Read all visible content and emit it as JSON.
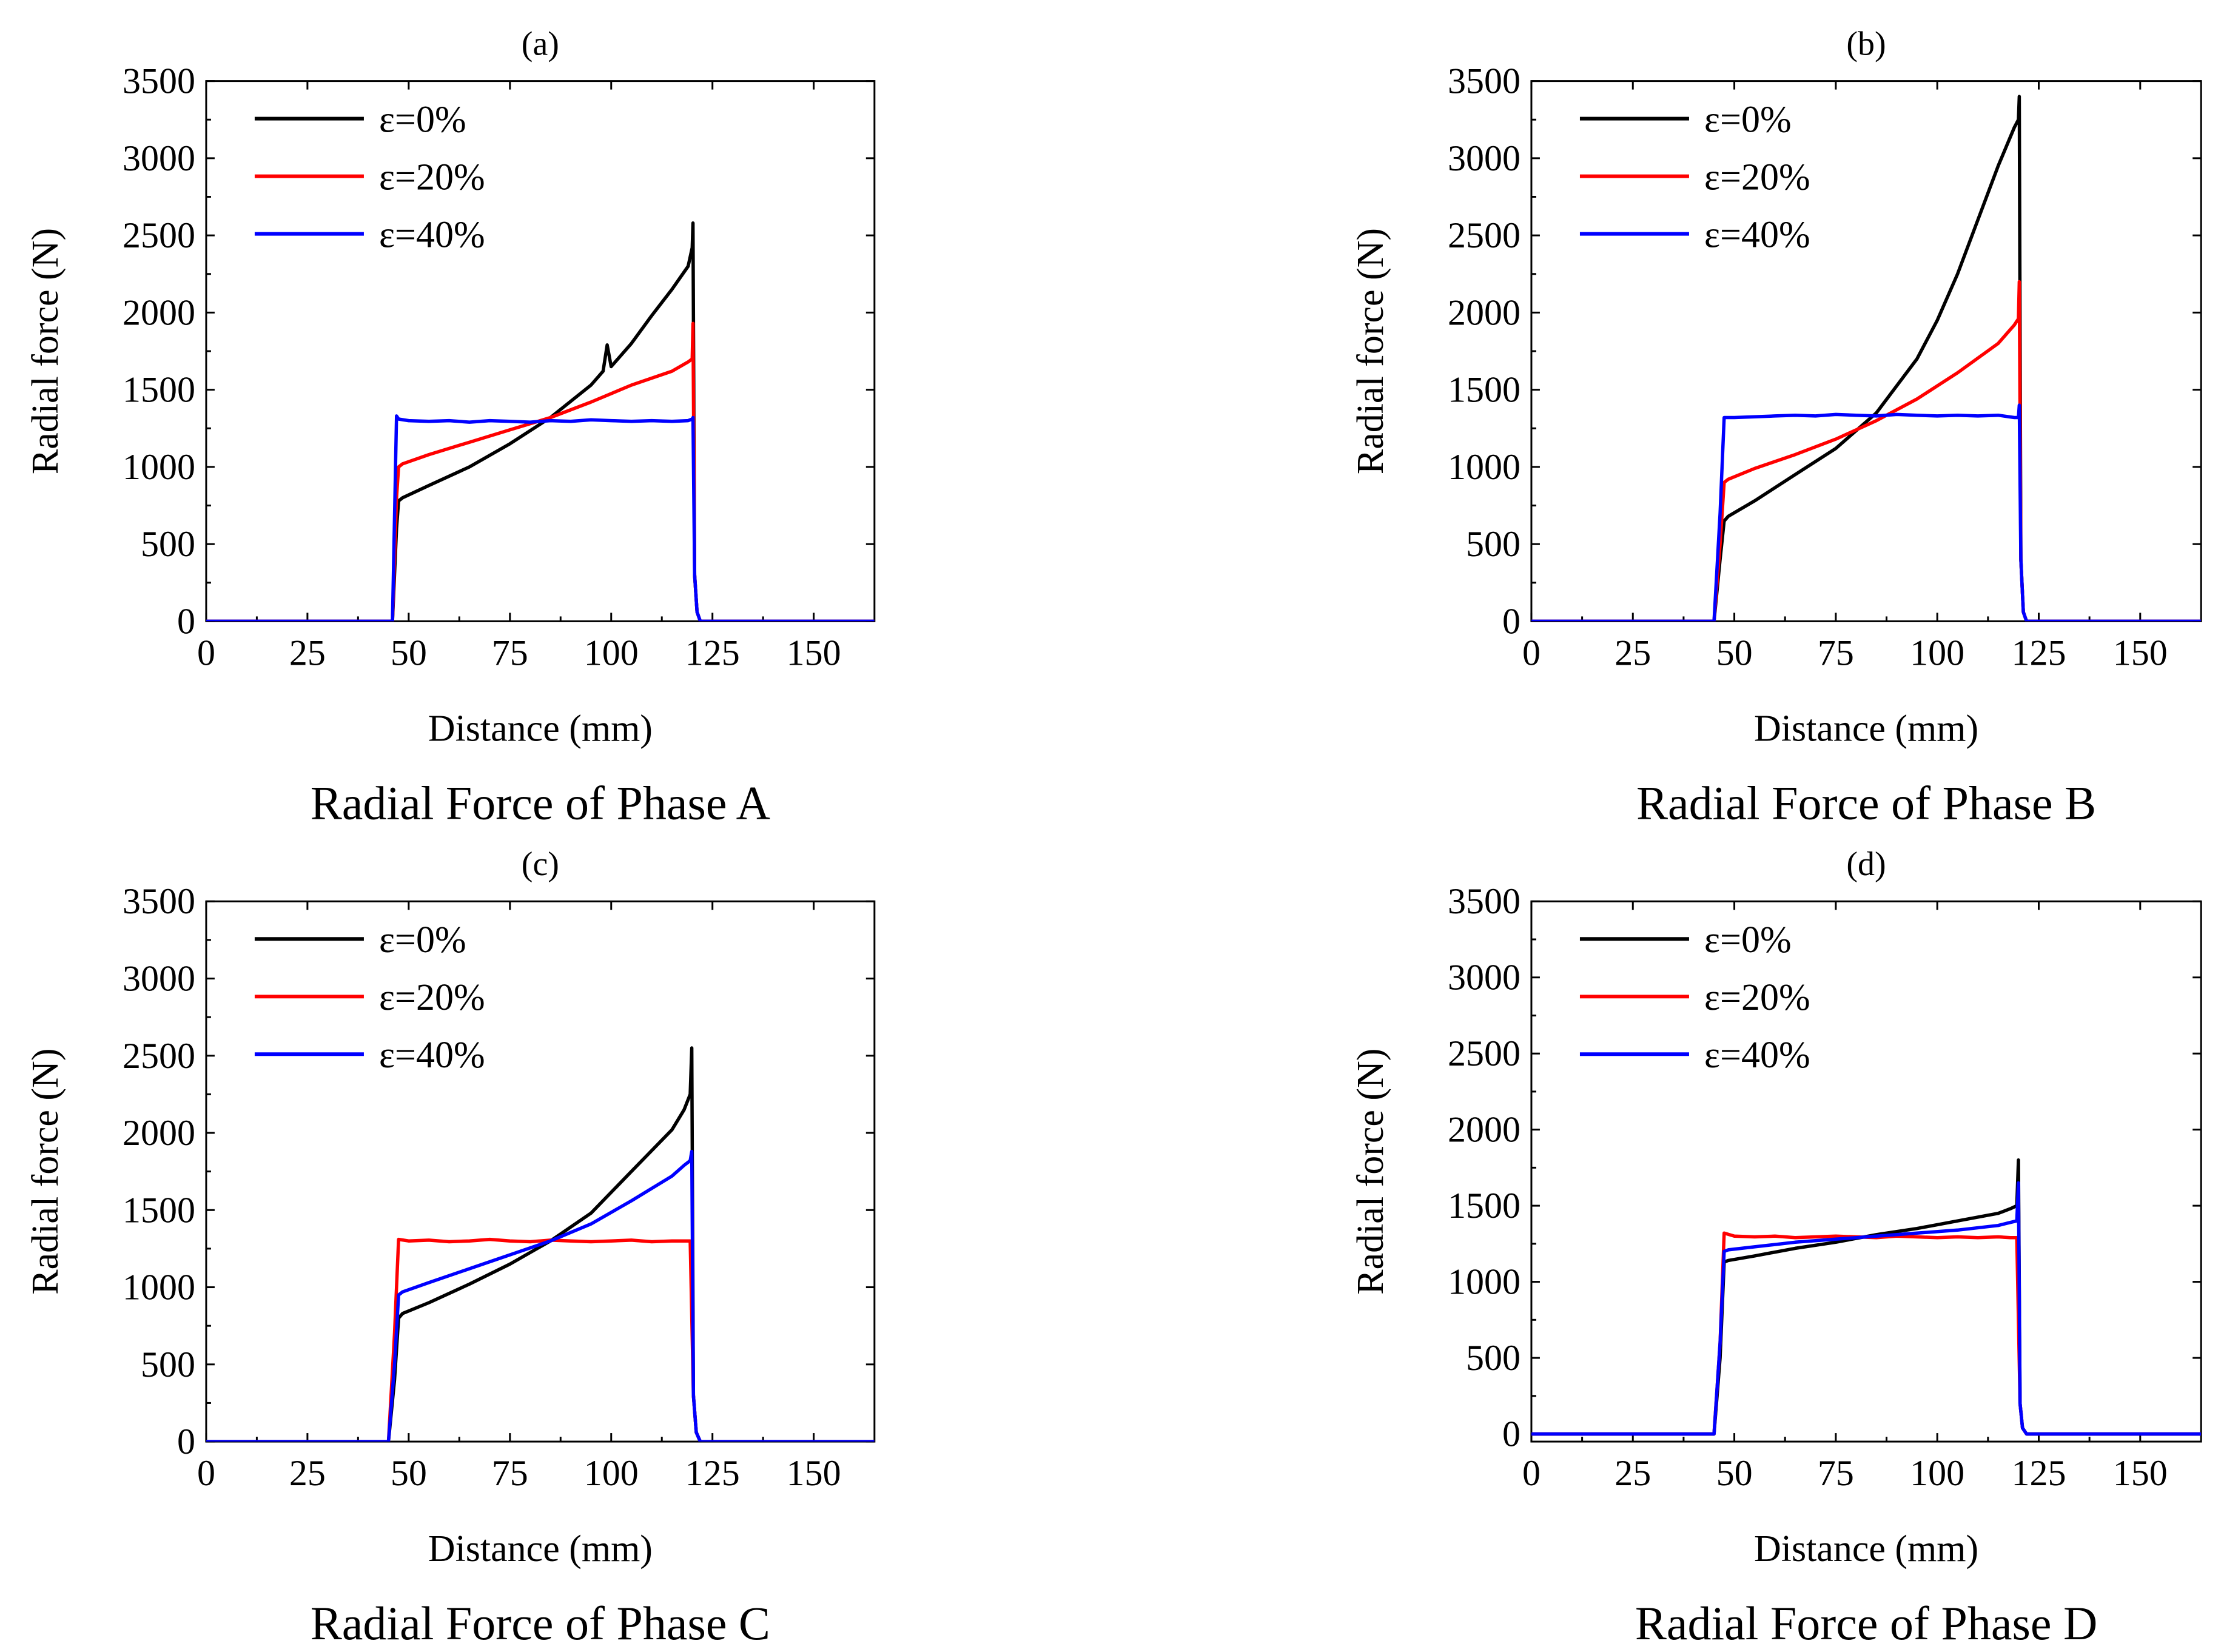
{
  "figure": {
    "x_axis_label": "Distance (mm)",
    "y_axis_label": "Radial  force (N)"
  },
  "chart_data": [
    {
      "type": "line",
      "panel_label": "(a)",
      "caption": "Radial Force of Phase A",
      "xlabel": "Distance (mm)",
      "ylabel": "Radial  force (N)",
      "xlim": [
        0,
        165
      ],
      "ylim": [
        0,
        3500
      ],
      "xticks": [
        0,
        25,
        50,
        75,
        100,
        125,
        150
      ],
      "yticks": [
        0,
        500,
        1000,
        1500,
        2000,
        2500,
        3000,
        3500
      ],
      "legend_position": "top-left",
      "series": [
        {
          "name": "ε=0%",
          "color": "#000000",
          "x": [
            0,
            46,
            47,
            47.5,
            48.5,
            55,
            65,
            75,
            85,
            95,
            98,
            99,
            100,
            105,
            110,
            115,
            119,
            120,
            120.2,
            120.6,
            121.2,
            122,
            165
          ],
          "y": [
            0,
            0,
            600,
            780,
            800,
            880,
            1000,
            1150,
            1320,
            1530,
            1620,
            1790,
            1650,
            1800,
            1980,
            2150,
            2300,
            2420,
            2580,
            300,
            60,
            0,
            0
          ]
        },
        {
          "name": "ε=20%",
          "color": "#ff0000",
          "x": [
            0,
            46,
            47,
            47.5,
            48.5,
            55,
            65,
            75,
            85,
            95,
            105,
            115,
            119,
            120,
            120.2,
            120.6,
            121.2,
            122,
            165
          ],
          "y": [
            0,
            0,
            800,
            1000,
            1020,
            1080,
            1160,
            1240,
            1320,
            1420,
            1530,
            1620,
            1680,
            1700,
            1930,
            300,
            60,
            0,
            0
          ]
        },
        {
          "name": "ε=40%",
          "color": "#0000ff",
          "x": [
            0,
            46,
            47,
            47.5,
            50,
            55,
            60,
            65,
            70,
            75,
            80,
            85,
            90,
            95,
            100,
            105,
            110,
            115,
            119,
            120,
            120.2,
            120.6,
            121.2,
            122,
            165
          ],
          "y": [
            0,
            0,
            1330,
            1310,
            1300,
            1295,
            1300,
            1290,
            1300,
            1295,
            1290,
            1300,
            1295,
            1305,
            1300,
            1295,
            1300,
            1295,
            1300,
            1310,
            1320,
            300,
            60,
            0,
            0
          ]
        }
      ]
    },
    {
      "type": "line",
      "panel_label": "(b)",
      "caption": "Radial Force of Phase B",
      "xlabel": "Distance (mm)",
      "ylabel": "Radial  force (N)",
      "xlim": [
        0,
        165
      ],
      "ylim": [
        0,
        3500
      ],
      "xticks": [
        0,
        25,
        50,
        75,
        100,
        125,
        150
      ],
      "yticks": [
        0,
        500,
        1000,
        1500,
        2000,
        2500,
        3000,
        3500
      ],
      "legend_position": "top-left",
      "series": [
        {
          "name": "ε=0%",
          "color": "#000000",
          "x": [
            0,
            45,
            46.5,
            47.5,
            48.5,
            55,
            65,
            75,
            85,
            95,
            100,
            105,
            110,
            115,
            119,
            120,
            120.2,
            120.6,
            121.2,
            122,
            165
          ],
          "y": [
            0,
            0,
            400,
            650,
            680,
            780,
            950,
            1120,
            1350,
            1700,
            1950,
            2250,
            2600,
            2950,
            3200,
            3250,
            3400,
            400,
            60,
            0,
            0
          ]
        },
        {
          "name": "ε=20%",
          "color": "#ff0000",
          "x": [
            0,
            45,
            46.5,
            47.5,
            48.5,
            55,
            65,
            75,
            85,
            95,
            105,
            115,
            119,
            120,
            120.2,
            120.6,
            121.2,
            122,
            165
          ],
          "y": [
            0,
            0,
            500,
            900,
            920,
            990,
            1080,
            1180,
            1300,
            1440,
            1610,
            1800,
            1920,
            1960,
            2200,
            400,
            60,
            0,
            0
          ]
        },
        {
          "name": "ε=40%",
          "color": "#0000ff",
          "x": [
            0,
            45,
            46.5,
            47.5,
            50,
            55,
            60,
            65,
            70,
            75,
            80,
            85,
            90,
            95,
            100,
            105,
            110,
            115,
            119,
            120,
            120.2,
            120.6,
            121.2,
            122,
            165
          ],
          "y": [
            0,
            0,
            700,
            1320,
            1320,
            1325,
            1330,
            1335,
            1330,
            1340,
            1335,
            1330,
            1340,
            1335,
            1330,
            1335,
            1330,
            1335,
            1320,
            1320,
            1400,
            400,
            60,
            0,
            0
          ]
        }
      ]
    },
    {
      "type": "line",
      "panel_label": "(c)",
      "caption": "Radial Force of Phase C",
      "xlabel": "Distance (mm)",
      "ylabel": "Radial  force (N)",
      "xlim": [
        0,
        165
      ],
      "ylim": [
        0,
        3500
      ],
      "xticks": [
        0,
        25,
        50,
        75,
        100,
        125,
        150
      ],
      "yticks": [
        0,
        500,
        1000,
        1500,
        2000,
        2500,
        3000,
        3500
      ],
      "legend_position": "top-left",
      "series": [
        {
          "name": "ε=0%",
          "color": "#000000",
          "x": [
            0,
            45,
            46.5,
            47.5,
            48.5,
            55,
            65,
            75,
            85,
            95,
            105,
            115,
            118,
            119.5,
            119.9,
            120.3,
            121,
            122,
            165
          ],
          "y": [
            0,
            0,
            400,
            800,
            830,
            900,
            1020,
            1150,
            1300,
            1480,
            1750,
            2020,
            2150,
            2250,
            2550,
            300,
            60,
            0,
            0
          ]
        },
        {
          "name": "ε=20%",
          "color": "#ff0000",
          "x": [
            0,
            45,
            46.5,
            47.5,
            50,
            55,
            60,
            65,
            70,
            75,
            80,
            85,
            90,
            95,
            100,
            105,
            110,
            115,
            118,
            119.5,
            120.3,
            121,
            122,
            165
          ],
          "y": [
            0,
            0,
            700,
            1310,
            1300,
            1305,
            1295,
            1300,
            1310,
            1300,
            1295,
            1305,
            1300,
            1295,
            1300,
            1305,
            1295,
            1300,
            1300,
            1300,
            300,
            60,
            0,
            0
          ]
        },
        {
          "name": "ε=40%",
          "color": "#0000ff",
          "x": [
            0,
            45,
            46.5,
            47.5,
            48.5,
            55,
            65,
            75,
            85,
            95,
            105,
            115,
            118,
            119.5,
            119.9,
            120.3,
            121,
            122,
            165
          ],
          "y": [
            0,
            0,
            500,
            950,
            970,
            1030,
            1120,
            1210,
            1300,
            1410,
            1560,
            1720,
            1790,
            1820,
            1880,
            300,
            60,
            0,
            0
          ]
        }
      ]
    },
    {
      "type": "line",
      "panel_label": "(d)",
      "caption": "Radial Force of Phase D",
      "xlabel": "Distance (mm)",
      "ylabel": "Radial  force (N)",
      "xlim": [
        0,
        165
      ],
      "ylim": [
        -50,
        3500
      ],
      "xticks": [
        0,
        25,
        50,
        75,
        100,
        125,
        150
      ],
      "yticks": [
        0,
        500,
        1000,
        1500,
        2000,
        2500,
        3000,
        3500
      ],
      "legend_position": "top-left",
      "series": [
        {
          "name": "ε=0%",
          "color": "#000000",
          "x": [
            0,
            45,
            46.5,
            47.5,
            48.5,
            55,
            65,
            75,
            85,
            95,
            105,
            115,
            118,
            119.6,
            120,
            120.4,
            121,
            122,
            165
          ],
          "y": [
            0,
            0,
            500,
            1130,
            1140,
            1170,
            1220,
            1260,
            1310,
            1350,
            1400,
            1450,
            1480,
            1500,
            1800,
            200,
            40,
            0,
            0
          ]
        },
        {
          "name": "ε=20%",
          "color": "#ff0000",
          "x": [
            0,
            45,
            46.5,
            47.5,
            50,
            55,
            60,
            65,
            70,
            75,
            80,
            85,
            90,
            95,
            100,
            105,
            110,
            115,
            118,
            119.6,
            120.4,
            121,
            122,
            165
          ],
          "y": [
            0,
            0,
            600,
            1320,
            1300,
            1295,
            1300,
            1290,
            1295,
            1300,
            1295,
            1290,
            1300,
            1295,
            1290,
            1295,
            1290,
            1295,
            1290,
            1290,
            200,
            40,
            0,
            0
          ]
        },
        {
          "name": "ε=40%",
          "color": "#0000ff",
          "x": [
            0,
            45,
            46.5,
            47.5,
            48.5,
            55,
            65,
            75,
            85,
            95,
            105,
            115,
            118,
            119.6,
            120,
            120.4,
            121,
            122,
            165
          ],
          "y": [
            0,
            0,
            600,
            1200,
            1210,
            1230,
            1260,
            1280,
            1300,
            1320,
            1340,
            1370,
            1390,
            1400,
            1650,
            200,
            40,
            0,
            0
          ]
        }
      ]
    }
  ]
}
